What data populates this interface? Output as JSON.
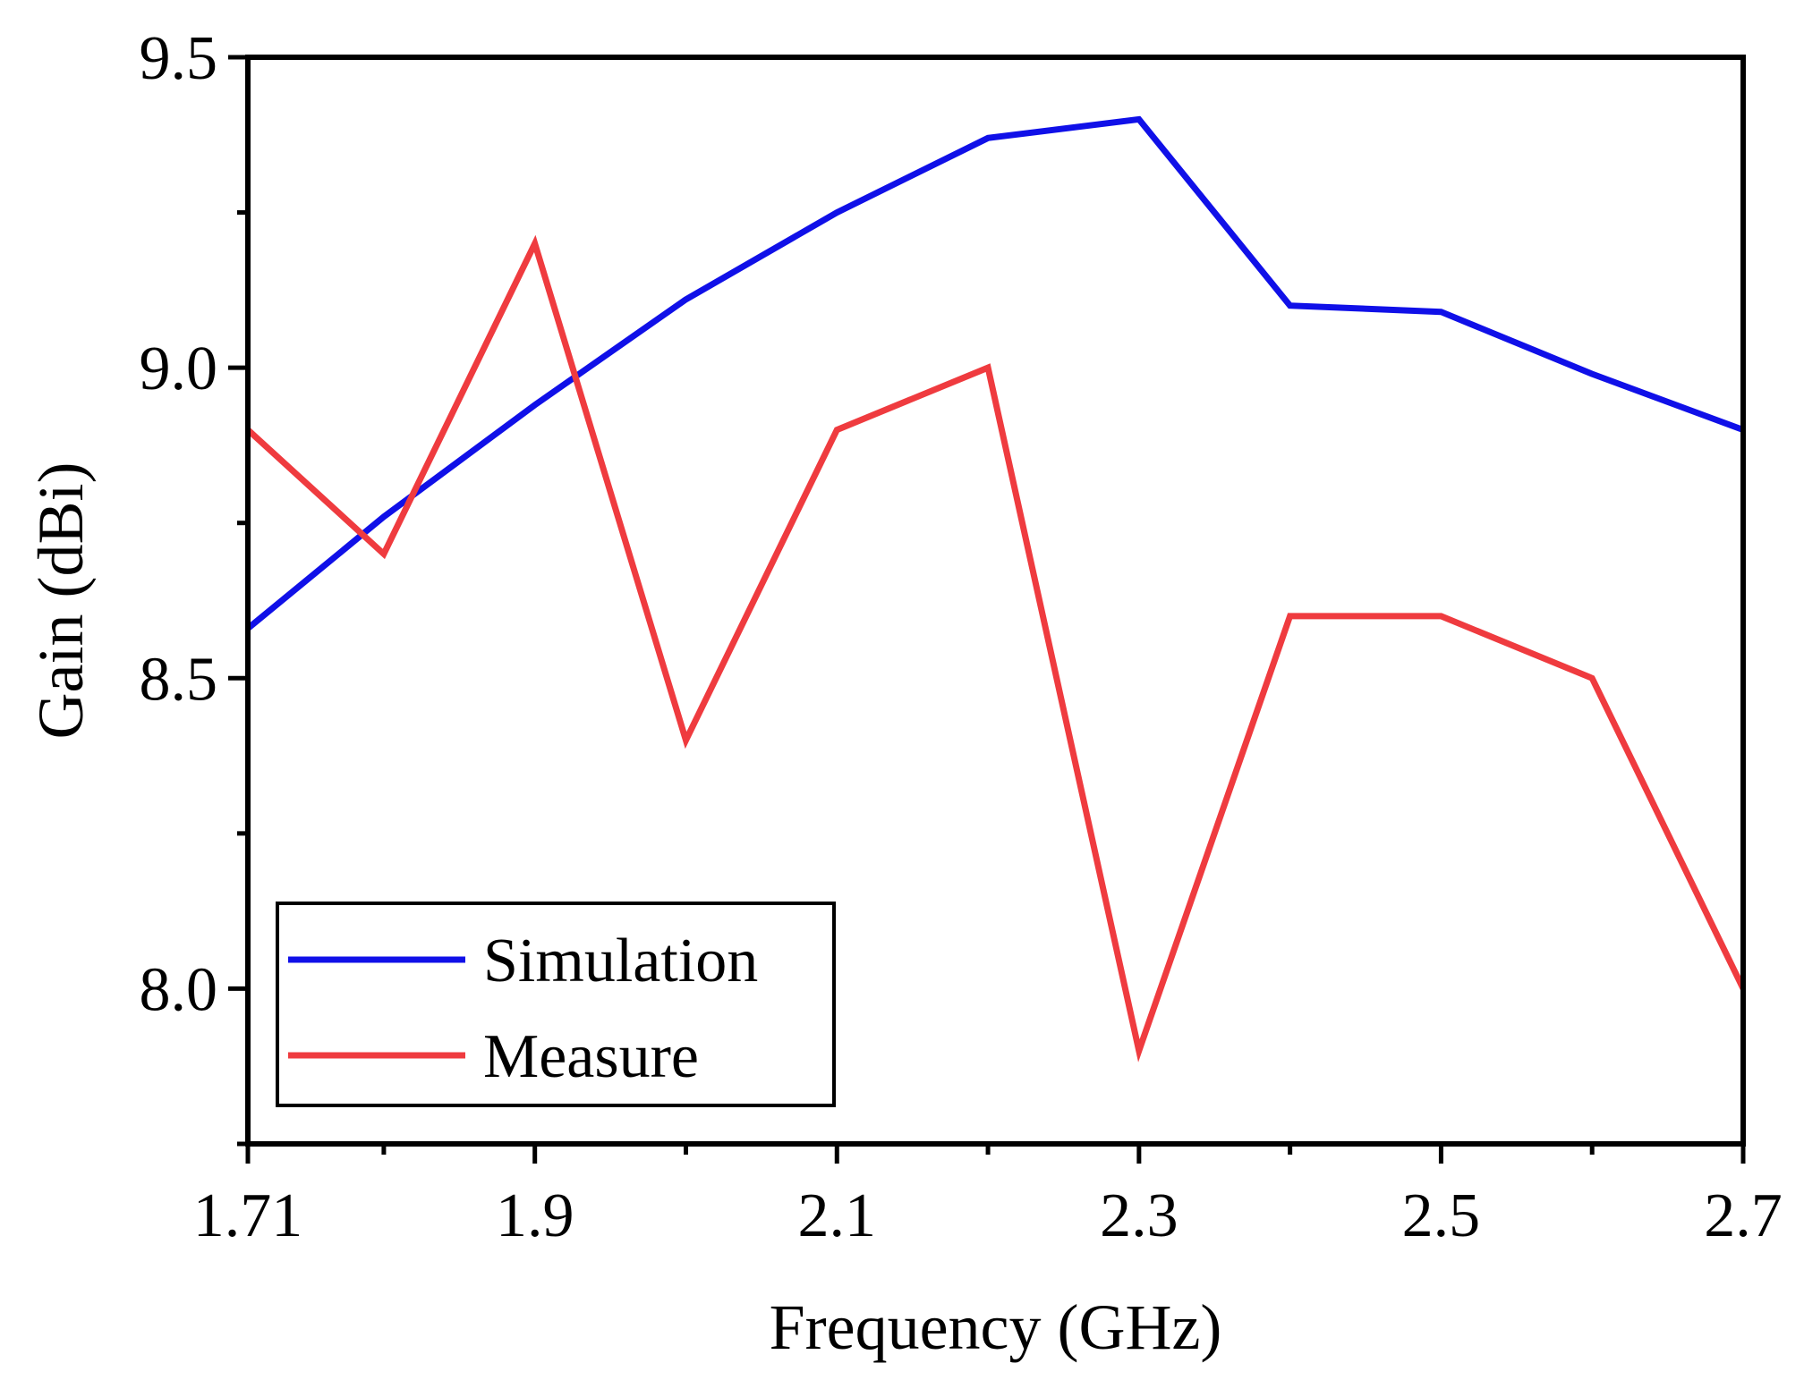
{
  "chart_data": {
    "type": "line",
    "title": "",
    "xlabel": "Frequency (GHz)",
    "ylabel": "Gain (dBi)",
    "xlim": [
      1.71,
      2.7
    ],
    "ylim": [
      7.75,
      9.5
    ],
    "xticks": [
      {
        "value": 1.71,
        "label": "1.71"
      },
      {
        "value": 1.9,
        "label": "1.9"
      },
      {
        "value": 2.1,
        "label": "2.1"
      },
      {
        "value": 2.3,
        "label": "2.3"
      },
      {
        "value": 2.5,
        "label": "2.5"
      },
      {
        "value": 2.7,
        "label": "2.7"
      }
    ],
    "xminor_ticks": [
      1.8,
      2.0,
      2.2,
      2.4,
      2.6
    ],
    "yticks": [
      {
        "value": 8.0,
        "label": "8.0"
      },
      {
        "value": 8.5,
        "label": "8.5"
      },
      {
        "value": 9.0,
        "label": "9.0"
      },
      {
        "value": 9.5,
        "label": "9.5"
      }
    ],
    "yminor_ticks": [
      7.75,
      8.25,
      8.75,
      9.25
    ],
    "grid": false,
    "legend_position": "bottom-left",
    "series": [
      {
        "name": "Simulation",
        "color": "#1010e8",
        "x": [
          1.71,
          1.8,
          1.9,
          2.0,
          2.1,
          2.2,
          2.3,
          2.4,
          2.5,
          2.6,
          2.7
        ],
        "y": [
          8.58,
          8.76,
          8.94,
          9.11,
          9.25,
          9.37,
          9.4,
          9.1,
          9.09,
          8.99,
          8.9
        ]
      },
      {
        "name": "Measure",
        "color": "#ef3b3f",
        "x": [
          1.71,
          1.8,
          1.9,
          2.0,
          2.1,
          2.2,
          2.3,
          2.4,
          2.5,
          2.6,
          2.7
        ],
        "y": [
          8.9,
          8.7,
          9.2,
          8.4,
          8.9,
          9.0,
          7.9,
          8.6,
          8.6,
          8.5,
          8.0
        ]
      }
    ]
  }
}
